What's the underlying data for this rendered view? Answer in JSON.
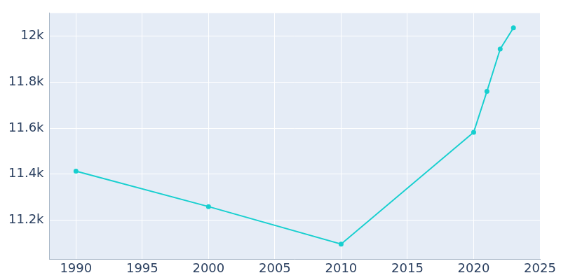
{
  "chart_data": {
    "type": "line",
    "x": [
      1990,
      2000,
      2010,
      2020,
      2021,
      2022,
      2023
    ],
    "values": [
      11413,
      11259,
      11096,
      11582,
      11760,
      11944,
      12036
    ],
    "color": "#17cfcf",
    "marker": "circle",
    "line_style": "solid",
    "xlim": [
      1988,
      2025
    ],
    "xticks": [
      1990,
      1995,
      2000,
      2005,
      2010,
      2015,
      2020,
      2025
    ],
    "ylim": [
      11030,
      12100
    ],
    "yticks": [
      {
        "value": 11200,
        "label": "11.2k"
      },
      {
        "value": 11400,
        "label": "11.4k"
      },
      {
        "value": 11600,
        "label": "11.6k"
      },
      {
        "value": 11800,
        "label": "11.8k"
      },
      {
        "value": 12000,
        "label": "12k"
      }
    ],
    "grid": true
  }
}
